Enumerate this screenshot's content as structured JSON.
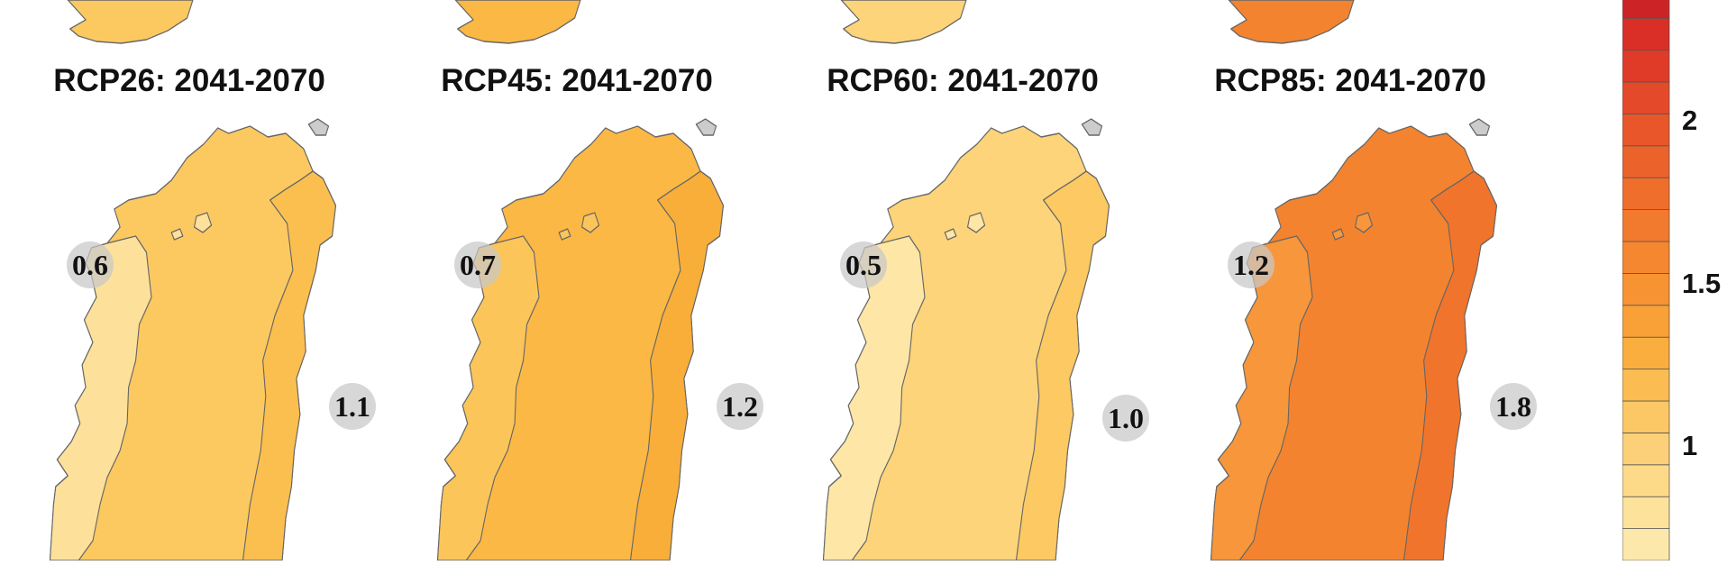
{
  "panels": [
    {
      "title": "RCP26: 2041-2070",
      "west_value": "0.6",
      "east_value": "1.1",
      "colors": {
        "west": "#fde19a",
        "main": "#fcc961",
        "east": "#fbbf4f"
      }
    },
    {
      "title": "RCP45: 2041-2070",
      "west_value": "0.7",
      "east_value": "1.2",
      "colors": {
        "west": "#fcc55a",
        "main": "#fbb845",
        "east": "#f9ae3a"
      }
    },
    {
      "title": "RCP60: 2041-2070",
      "west_value": "0.5",
      "east_value": "1.0",
      "colors": {
        "west": "#fee6a6",
        "main": "#fdd47a",
        "east": "#fcc962"
      }
    },
    {
      "title": "RCP85: 2041-2070",
      "west_value": "1.2",
      "east_value": "1.8",
      "colors": {
        "west": "#f7963a",
        "main": "#f4832f",
        "east": "#f0742c"
      }
    }
  ],
  "legend": {
    "ticks": [
      "2",
      "1.5",
      "1"
    ],
    "colors": [
      "#fde8ac",
      "#fde29b",
      "#fdda88",
      "#fcd078",
      "#fcc765",
      "#fbbc52",
      "#faae3e",
      "#f9a136",
      "#f79333",
      "#f58730",
      "#f27a2e",
      "#ef6e2c",
      "#ec622b",
      "#e8562a",
      "#e44929",
      "#df3b28",
      "#d92f27",
      "#cc2426"
    ]
  },
  "map_colors": {
    "outline": "#666666",
    "scotland": "#cccccc",
    "background": "#ffffff"
  }
}
